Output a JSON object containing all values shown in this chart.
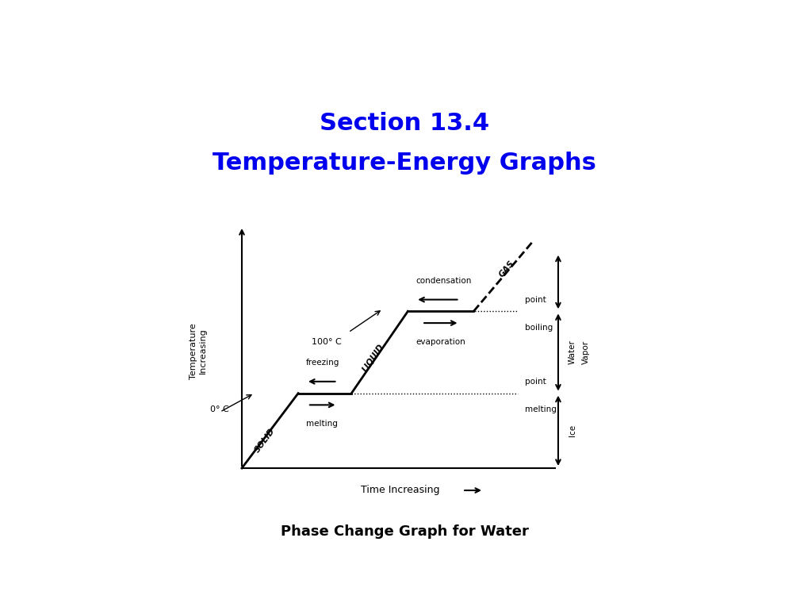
{
  "title_line1": "Section 13.4",
  "title_line2": "Temperature-Energy Graphs",
  "title_color": "#0000EE",
  "title_fontsize": 22,
  "subtitle": "Phase Change Graph for Water",
  "subtitle_fontsize": 13,
  "bg_color": "#FFFFFF",
  "header_color1": "#4a4a5a",
  "header_color2": "#3d8080",
  "header_color3": "#6aacac",
  "header_color4": "#90c8c8",
  "header_color5": "#b8dcdc",
  "header_white": "#ffffff"
}
